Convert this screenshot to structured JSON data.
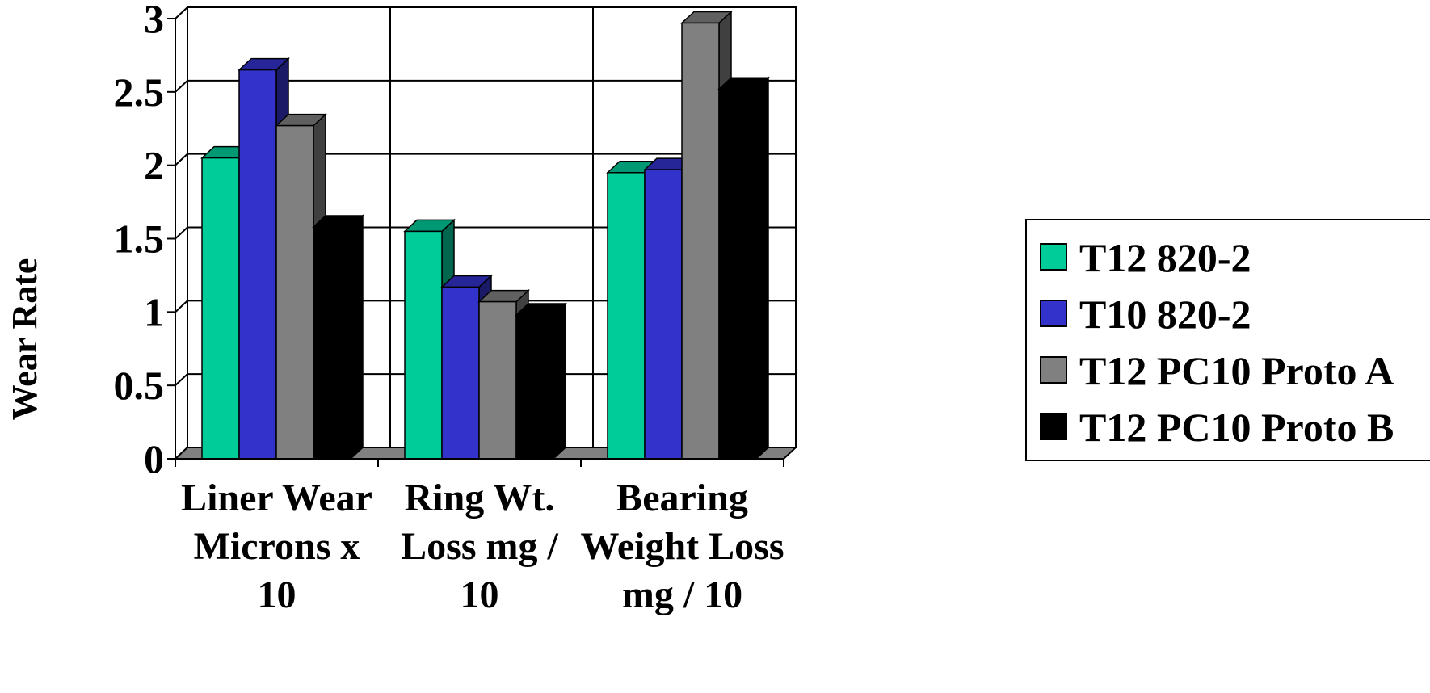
{
  "chart_data": {
    "type": "bar",
    "title": "",
    "xlabel": "",
    "ylabel": "Wear Rate",
    "ylim": [
      0,
      3
    ],
    "yticks": [
      "0",
      "0.5",
      "1",
      "1.5",
      "2",
      "2.5",
      "3"
    ],
    "grid": true,
    "legend_position": "right",
    "categories": [
      [
        "Liner Wear",
        "Microns x",
        "10"
      ],
      [
        "Ring Wt.",
        "Loss   mg /",
        "10"
      ],
      [
        "Bearing",
        "Weight Loss",
        "mg / 10"
      ]
    ],
    "series": [
      {
        "name": "T12 820-2",
        "color": "#00CC99",
        "values": [
          2.05,
          1.55,
          1.95
        ]
      },
      {
        "name": "T10 820-2",
        "color": "#3333CC",
        "values": [
          2.65,
          1.17,
          1.97
        ]
      },
      {
        "name": "T12 PC10 Proto A",
        "color": "#808080",
        "values": [
          2.27,
          1.07,
          2.97
        ]
      },
      {
        "name": "T12 PC10 Proto B",
        "color": "#000000",
        "values": [
          1.58,
          0.98,
          2.52
        ]
      }
    ]
  }
}
